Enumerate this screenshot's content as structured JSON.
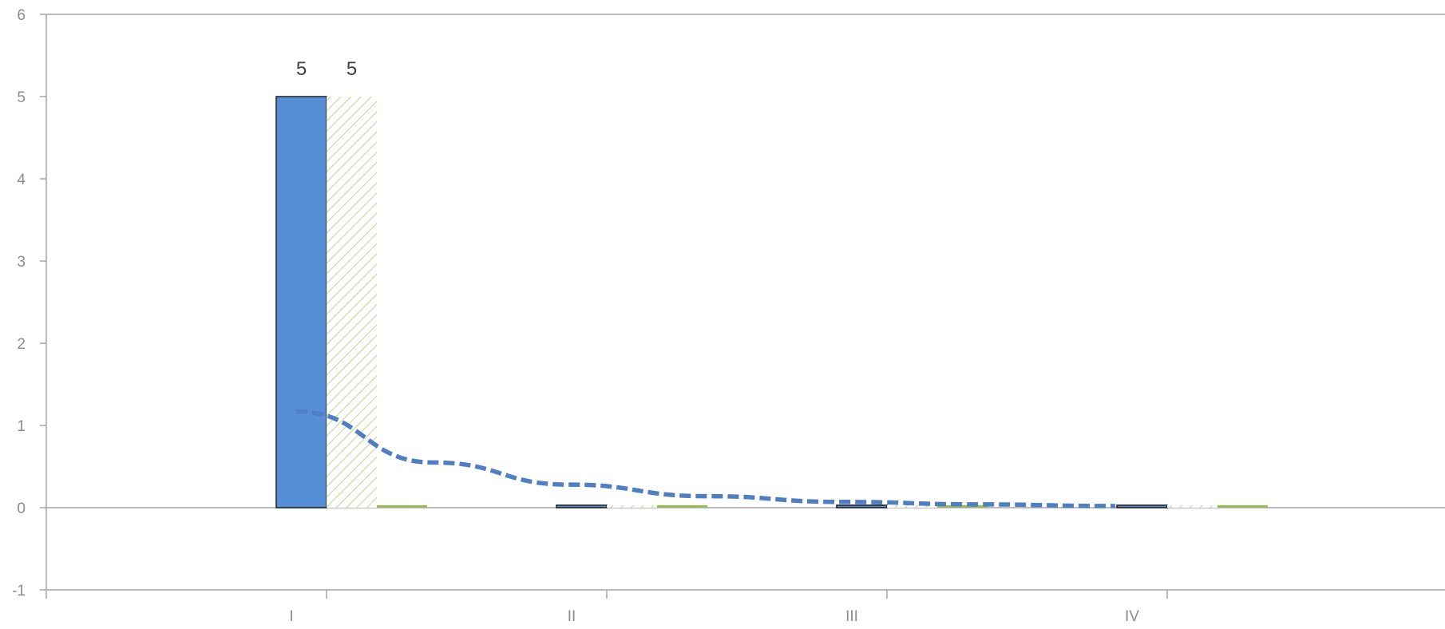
{
  "chart_data": {
    "type": "bar",
    "categories": [
      "I",
      "II",
      "III",
      "IV"
    ],
    "series": [
      {
        "values": [
          5,
          0.03,
          0.03,
          0.03
        ],
        "color": "#558ed5",
        "style": "solid-outlined"
      },
      {
        "values": [
          5,
          0.03,
          0.03,
          0.03
        ],
        "color": "#c4d79b",
        "style": "diagonal-hatch"
      },
      {
        "values": [
          0.03,
          0.03,
          0.03,
          0.03
        ],
        "color": "#9bbb59",
        "style": "solid"
      }
    ],
    "trendline": {
      "type": "exponential",
      "style": "dashed",
      "color": "#4f7fc2",
      "points": [
        [
          1,
          1.17
        ],
        [
          1.5,
          0.55
        ],
        [
          2,
          0.28
        ],
        [
          2.5,
          0.14
        ],
        [
          3,
          0.07
        ],
        [
          3.5,
          0.04
        ],
        [
          4,
          0.02
        ]
      ]
    },
    "data_labels": [
      {
        "text": "5",
        "category": "I",
        "series_index": 0
      },
      {
        "text": "5",
        "category": "I",
        "series_index": 1
      }
    ],
    "yticks": [
      "6",
      "5",
      "4",
      "3",
      "2",
      "1",
      "0",
      "-1"
    ],
    "ylim": [
      -1,
      6
    ],
    "grid": false,
    "legend": "none",
    "title": "",
    "xlabel": "",
    "ylabel": ""
  }
}
